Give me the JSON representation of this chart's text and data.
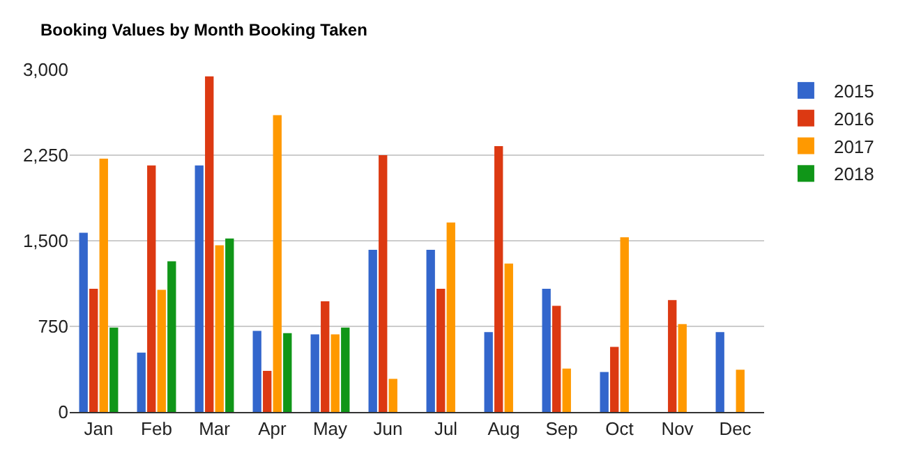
{
  "chart_data": {
    "type": "bar",
    "title": "Booking Values by Month Booking Taken",
    "categories": [
      "Jan",
      "Feb",
      "Mar",
      "Apr",
      "May",
      "Jun",
      "Jul",
      "Aug",
      "Sep",
      "Oct",
      "Nov",
      "Dec"
    ],
    "series": [
      {
        "name": "2015",
        "color": "#3366cc",
        "values": [
          1570,
          520,
          2160,
          710,
          680,
          1420,
          1420,
          700,
          1080,
          350,
          null,
          700
        ]
      },
      {
        "name": "2016",
        "color": "#dc3912",
        "values": [
          1080,
          2160,
          2940,
          360,
          970,
          2250,
          1080,
          2330,
          930,
          570,
          980,
          null
        ]
      },
      {
        "name": "2017",
        "color": "#ff9900",
        "values": [
          2220,
          1070,
          1460,
          2600,
          680,
          290,
          1660,
          1300,
          380,
          1530,
          770,
          370
        ]
      },
      {
        "name": "2018",
        "color": "#109618",
        "values": [
          740,
          1320,
          1520,
          690,
          740,
          null,
          null,
          null,
          null,
          null,
          null,
          null
        ]
      }
    ],
    "ylim": [
      0,
      3000
    ],
    "yticks": [
      0,
      {
        "value": 750,
        "label": "750"
      },
      {
        "value": 1500,
        "label": "1,500"
      },
      {
        "value": 2250,
        "label": "2,250"
      },
      {
        "value": 3000,
        "label": "3,000"
      }
    ],
    "grid": "y",
    "legend": "top right"
  }
}
